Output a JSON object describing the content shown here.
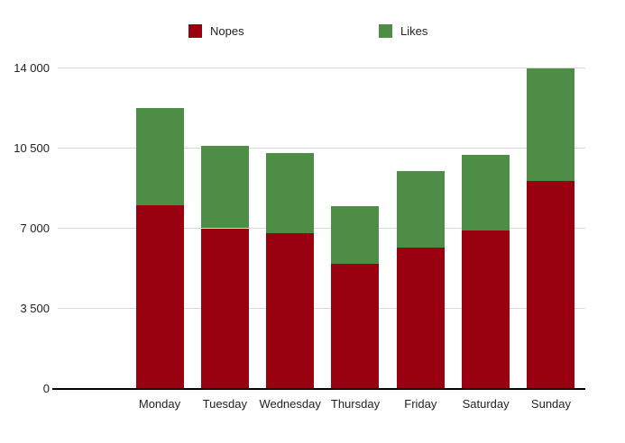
{
  "chart_data": {
    "type": "bar",
    "stacked": true,
    "title": "",
    "xlabel": "",
    "ylabel": "",
    "categories": [
      "Monday",
      "Tuesday",
      "Wednesday",
      "Thursday",
      "Friday",
      "Saturday",
      "Sunday"
    ],
    "series": [
      {
        "name": "Nopes",
        "color": "#990010",
        "values": [
          8000,
          7000,
          6800,
          5450,
          6150,
          6900,
          9050
        ]
      },
      {
        "name": "Likes",
        "color": "#4E8D46",
        "values": [
          4250,
          3600,
          3500,
          2500,
          3350,
          3300,
          4950
        ]
      }
    ],
    "totals": [
      12250,
      10600,
      10300,
      7950,
      9500,
      10200,
      14000
    ],
    "ylim": [
      0,
      14000
    ],
    "yticks": [
      0,
      3500,
      7000,
      10500,
      14000
    ],
    "ytick_labels": [
      "0",
      "3 500",
      "7 000",
      "10 500",
      "14 000"
    ],
    "grid": true,
    "legend_position": "top",
    "legend_entries": [
      "Nopes",
      "Likes"
    ]
  }
}
